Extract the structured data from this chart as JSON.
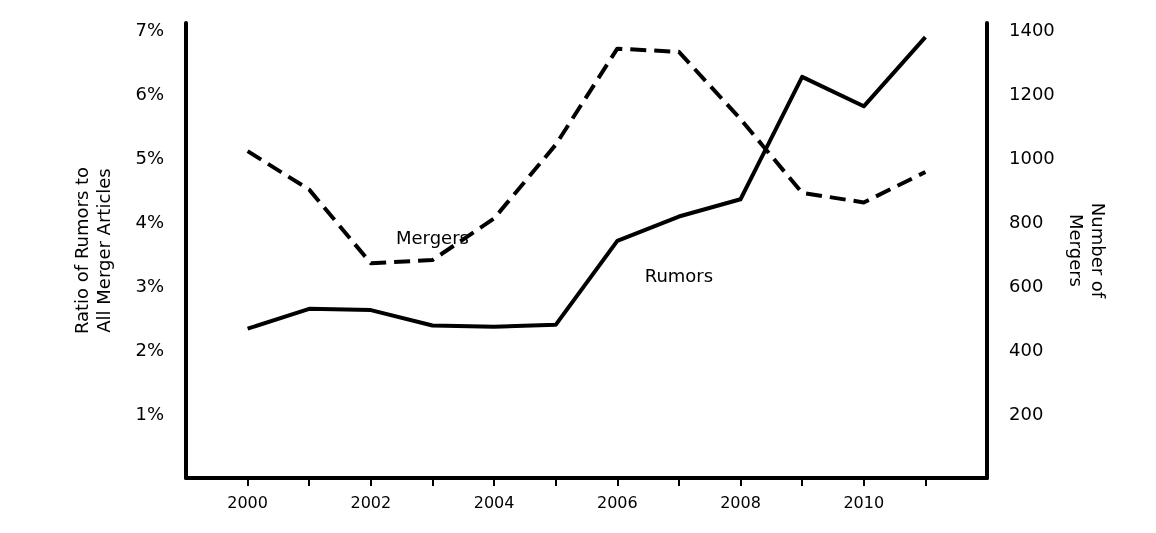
{
  "chart_data": {
    "type": "line",
    "ylabel": "Ratio of Rumors to\nAll Merger Articles",
    "y2label": "Number of\nMergers",
    "x": [
      2000,
      2001,
      2002,
      2003,
      2004,
      2005,
      2006,
      2007,
      2008,
      2009,
      2010,
      2011
    ],
    "series": [
      {
        "name": "Rumors",
        "color": "#000000",
        "line_style": "solid",
        "values": [
          2.33,
          2.64,
          2.62,
          2.38,
          2.36,
          2.39,
          3.7,
          4.08,
          4.35,
          6.26,
          5.8,
          6.88
        ]
      },
      {
        "name": "Mergers",
        "color": "#000000",
        "line_style": "dashed",
        "axis": "y2",
        "values": [
          1020,
          900,
          670,
          680,
          810,
          1040,
          1340,
          1330,
          1120,
          890,
          860,
          955
        ]
      }
    ],
    "xlim": [
      1999,
      2012
    ],
    "xticks": [
      2000,
      {
        "value": 2001,
        "label": null
      },
      2002,
      {
        "value": 2003,
        "label": null
      },
      2004,
      {
        "value": 2005,
        "label": null
      },
      2006,
      {
        "value": 2007,
        "label": null
      },
      2008,
      {
        "value": 2009,
        "label": null
      },
      2010,
      {
        "value": 2011,
        "label": null
      }
    ],
    "ylim": [
      0,
      7.1
    ],
    "yticks": [
      {
        "value": 1,
        "label": "1%"
      },
      {
        "value": 2,
        "label": "2%"
      },
      {
        "value": 3,
        "label": "3%"
      },
      {
        "value": 4,
        "label": "4%"
      },
      {
        "value": 5,
        "label": "5%"
      },
      {
        "value": 6,
        "label": "6%"
      },
      {
        "value": 7,
        "label": "7%"
      }
    ],
    "y2lim": [
      0,
      1420
    ],
    "y2ticks": [
      200,
      400,
      600,
      800,
      1000,
      1200,
      1400
    ],
    "marker": "none",
    "grid": false,
    "legend": false
  }
}
